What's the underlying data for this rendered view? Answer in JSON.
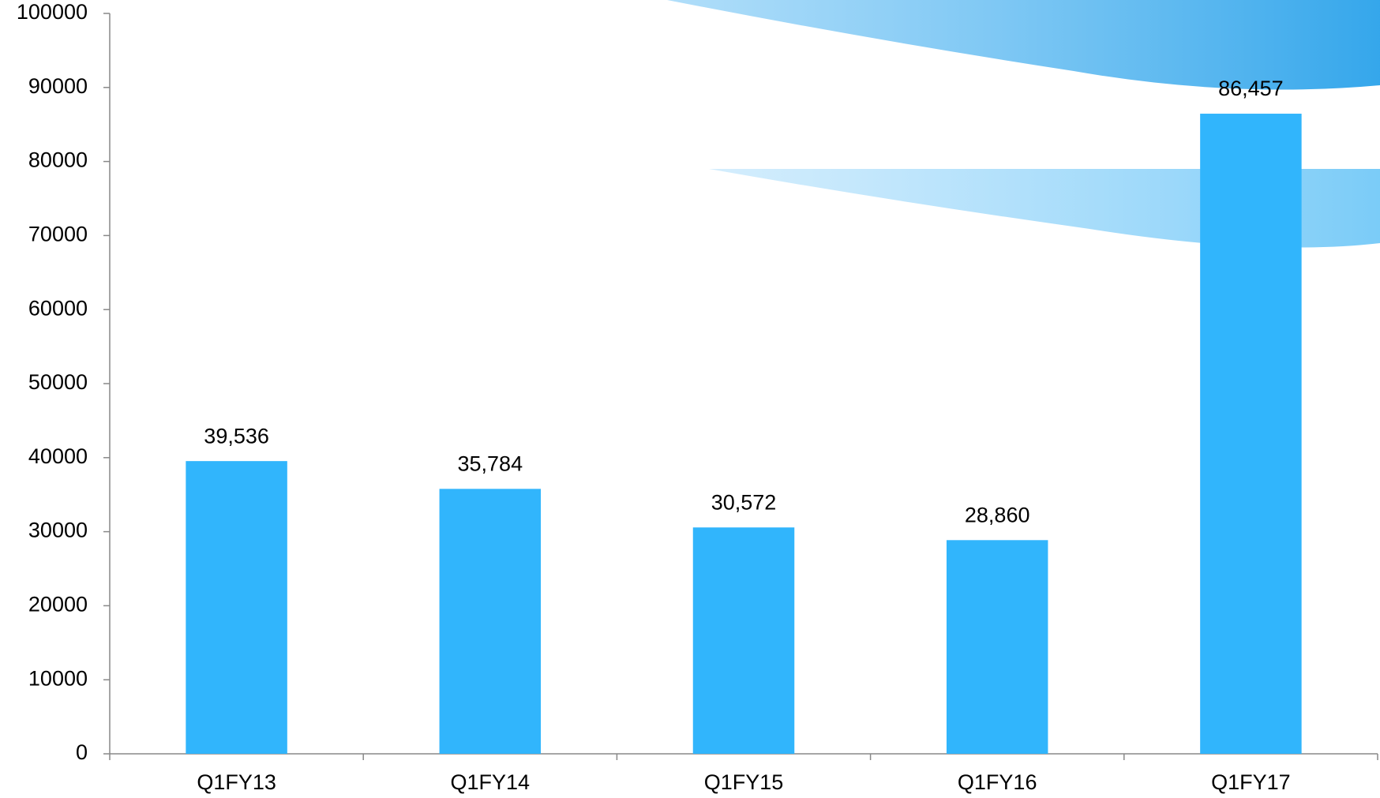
{
  "chart_data": {
    "type": "bar",
    "categories": [
      "Q1FY13",
      "Q1FY14",
      "Q1FY15",
      "Q1FY16",
      "Q1FY17"
    ],
    "values": [
      39536,
      35784,
      30572,
      28860,
      86457
    ],
    "value_labels": [
      "39,536",
      "35,784",
      "30,572",
      "28,860",
      "86,457"
    ],
    "color": "#31b5fc",
    "ylim": [
      0,
      100000
    ],
    "yticks": [
      0,
      10000,
      20000,
      30000,
      40000,
      50000,
      60000,
      70000,
      80000,
      90000,
      100000
    ],
    "grid": false
  }
}
